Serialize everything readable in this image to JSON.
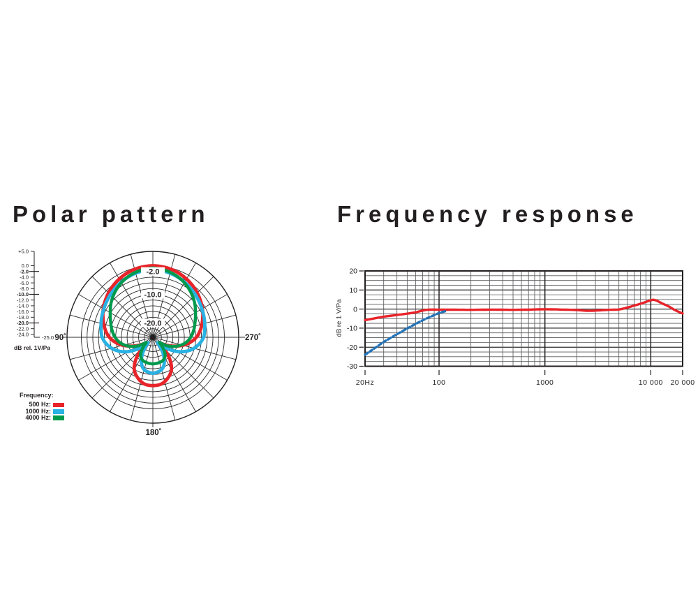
{
  "polar_panel": {
    "title": "Polar pattern",
    "scale": {
      "tick_labels": [
        "+5.0",
        "0.0",
        "-2.0",
        "-4.0",
        "-6.0",
        "-8.0",
        "-10.0",
        "-12.0",
        "-14.0",
        "-16.0",
        "-18.0",
        "-20.0",
        "-22.0",
        "-24.0"
      ],
      "tick_values": [
        5,
        0,
        -2,
        -4,
        -6,
        -8,
        -10,
        -12,
        -14,
        -16,
        -18,
        -20,
        -22,
        -24
      ],
      "bold_ticks": [
        -2,
        -10,
        -20
      ],
      "min_label": "-25.0",
      "axis_caption": "dB rel. 1V/Pa"
    },
    "angle_labels": {
      "left": "90˚",
      "right": "270˚",
      "bottom": "180˚"
    },
    "ring_labels": [
      {
        "text": "-2.0",
        "db": -2
      },
      {
        "text": "-10.0",
        "db": -10
      },
      {
        "text": "-20.0",
        "db": -20
      }
    ],
    "legend": {
      "title": "Frequency:",
      "items": [
        {
          "label": "500 Hz:",
          "color": "#e8242a"
        },
        {
          "label": "1000 Hz:",
          "color": "#29b2e3"
        },
        {
          "label": "4000 Hz:",
          "color": "#009a4d"
        }
      ]
    }
  },
  "freq_panel": {
    "title": "Frequency response",
    "ylabel": "dB re 1 V/Pa",
    "ytick_values": [
      20,
      10,
      0,
      -10,
      -20,
      -30
    ],
    "xticks": [
      {
        "label": "20Hz",
        "value": 20
      },
      {
        "label": "100",
        "value": 100
      },
      {
        "label": "1000",
        "value": 1000
      },
      {
        "label": "10 000",
        "value": 10000
      },
      {
        "label": "20 000",
        "value": 20000
      }
    ]
  },
  "chart_data": [
    {
      "type": "polar",
      "title": "Polar pattern",
      "radial_unit": "dB rel. 1V/Pa",
      "outer_db": 5,
      "center_db": -25,
      "rings_db": [
        0,
        -2,
        -4,
        -6,
        -8,
        -10,
        -12,
        -14,
        -16,
        -18,
        -20,
        -22,
        -24
      ],
      "labeled_rings_db": [
        -2,
        -10,
        -20
      ],
      "angle_step_deg": 15,
      "symmetric": true,
      "series": [
        {
          "name": "500 Hz",
          "color": "#e8242a",
          "width": 4.8,
          "points_deg_db": [
            [
              0,
              0
            ],
            [
              10,
              -0.2
            ],
            [
              20,
              -0.7
            ],
            [
              30,
              -1.5
            ],
            [
              40,
              -2.5
            ],
            [
              50,
              -3.7
            ],
            [
              60,
              -5.0
            ],
            [
              70,
              -6.5
            ],
            [
              80,
              -8.0
            ],
            [
              90,
              -9.8
            ],
            [
              100,
              -12.5
            ],
            [
              110,
              -16
            ],
            [
              120,
              -19.5
            ],
            [
              128,
              -21.5
            ],
            [
              135,
              -20
            ],
            [
              142,
              -15.5
            ],
            [
              150,
              -12
            ],
            [
              160,
              -9.8
            ],
            [
              170,
              -8.4
            ],
            [
              180,
              -8.1
            ]
          ]
        },
        {
          "name": "1000 Hz",
          "color": "#29b2e3",
          "width": 4.8,
          "points_deg_db": [
            [
              0,
              -1.3
            ],
            [
              10,
              -1.6
            ],
            [
              20,
              -2.1
            ],
            [
              30,
              -2.8
            ],
            [
              40,
              -3.6
            ],
            [
              50,
              -4.4
            ],
            [
              60,
              -5.2
            ],
            [
              70,
              -5.9
            ],
            [
              80,
              -6.6
            ],
            [
              90,
              -7.3
            ],
            [
              100,
              -9.0
            ],
            [
              110,
              -11.5
            ],
            [
              120,
              -15
            ],
            [
              130,
              -19.5
            ],
            [
              138,
              -22.5
            ],
            [
              146,
              -19
            ],
            [
              155,
              -15.5
            ],
            [
              165,
              -13.3
            ],
            [
              180,
              -12.4
            ]
          ]
        },
        {
          "name": "4000 Hz",
          "color": "#009a4d",
          "width": 4.4,
          "points_deg_db": [
            [
              0,
              -0.8
            ],
            [
              10,
              -1.2
            ],
            [
              20,
              -1.9
            ],
            [
              30,
              -3.0
            ],
            [
              40,
              -4.4
            ],
            [
              50,
              -6.0
            ],
            [
              60,
              -7.8
            ],
            [
              70,
              -9.3
            ],
            [
              80,
              -10.5
            ],
            [
              90,
              -11.8
            ],
            [
              100,
              -13.5
            ],
            [
              110,
              -16
            ],
            [
              120,
              -19
            ],
            [
              128,
              -22
            ],
            [
              136,
              -20
            ],
            [
              145,
              -17.5
            ],
            [
              155,
              -16.3
            ],
            [
              165,
              -15.9
            ],
            [
              180,
              -15.7
            ]
          ]
        }
      ]
    },
    {
      "type": "line",
      "title": "Frequency response",
      "xlabel": "Hz",
      "ylabel": "dB re 1 V/Pa",
      "x_scale": "log",
      "xlim": [
        20,
        20000
      ],
      "ylim": [
        -30,
        20
      ],
      "grid": {
        "y_minor_step_db": 2.5,
        "y_major_step_db": 10,
        "x_major": [
          100,
          1000,
          10000
        ],
        "x_minor": "log subdivisions 30-90, 200-900, 2000-9000"
      },
      "series": [
        {
          "name": "frequency response",
          "style": "solid",
          "color": "#e8242a",
          "width": 3.4,
          "points_hz_db": [
            [
              20,
              -5.8
            ],
            [
              25,
              -4.8
            ],
            [
              30,
              -4.0
            ],
            [
              40,
              -3.1
            ],
            [
              50,
              -2.4
            ],
            [
              60,
              -1.7
            ],
            [
              70,
              -0.8
            ],
            [
              80,
              -0.3
            ],
            [
              100,
              -0.3
            ],
            [
              150,
              -0.35
            ],
            [
              200,
              -0.4
            ],
            [
              300,
              -0.3
            ],
            [
              400,
              -0.35
            ],
            [
              500,
              -0.4
            ],
            [
              700,
              -0.3
            ],
            [
              1000,
              -0.1
            ],
            [
              1500,
              -0.3
            ],
            [
              2000,
              -0.5
            ],
            [
              2500,
              -0.9
            ],
            [
              3000,
              -0.8
            ],
            [
              4000,
              -0.4
            ],
            [
              5000,
              -0.2
            ],
            [
              6000,
              0.8
            ],
            [
              8000,
              2.8
            ],
            [
              10000,
              4.6
            ],
            [
              11000,
              4.7
            ],
            [
              13000,
              2.8
            ],
            [
              15000,
              1.2
            ],
            [
              17000,
              -0.6
            ],
            [
              20000,
              -2.3
            ]
          ]
        },
        {
          "name": "low-frequency roll-off",
          "style": "dashed",
          "color": "#2273b8",
          "width": 3.4,
          "points_hz_db": [
            [
              20,
              -24
            ],
            [
              25,
              -20.3
            ],
            [
              30,
              -17.3
            ],
            [
              40,
              -13.2
            ],
            [
              50,
              -10.2
            ],
            [
              60,
              -7.8
            ],
            [
              70,
              -5.9
            ],
            [
              80,
              -4.4
            ],
            [
              90,
              -3.2
            ],
            [
              100,
              -2.1
            ],
            [
              110,
              -1.4
            ],
            [
              118,
              -1.0
            ]
          ]
        }
      ]
    }
  ]
}
